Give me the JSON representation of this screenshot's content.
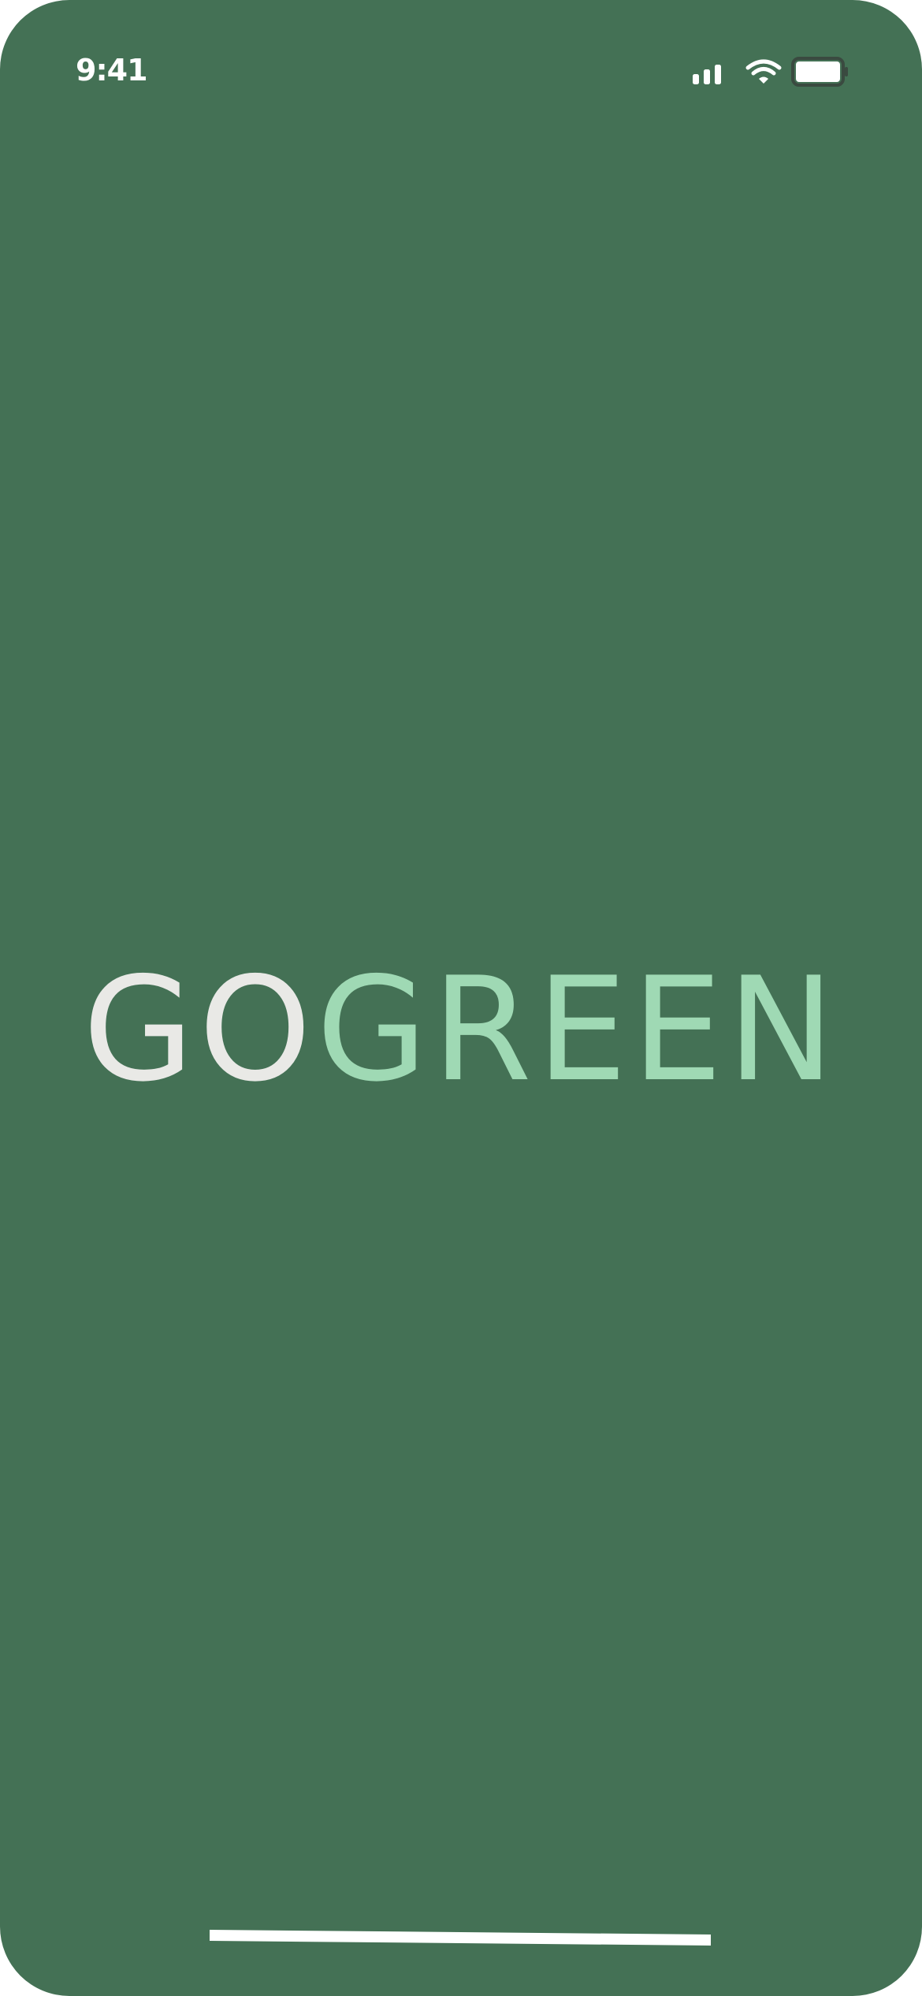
{
  "status_bar": {
    "time": "9:41",
    "icons": [
      "cellular-signal-icon",
      "wifi-icon",
      "battery-icon"
    ],
    "text_color": "#ffffff"
  },
  "logo": {
    "part_1": "GO",
    "part_2": "GREEN",
    "colors": {
      "part_1": "#e9e9e6",
      "part_2": "#9fd9b4"
    }
  },
  "theme": {
    "background": "#447155",
    "home_indicator": "#ffffff"
  }
}
